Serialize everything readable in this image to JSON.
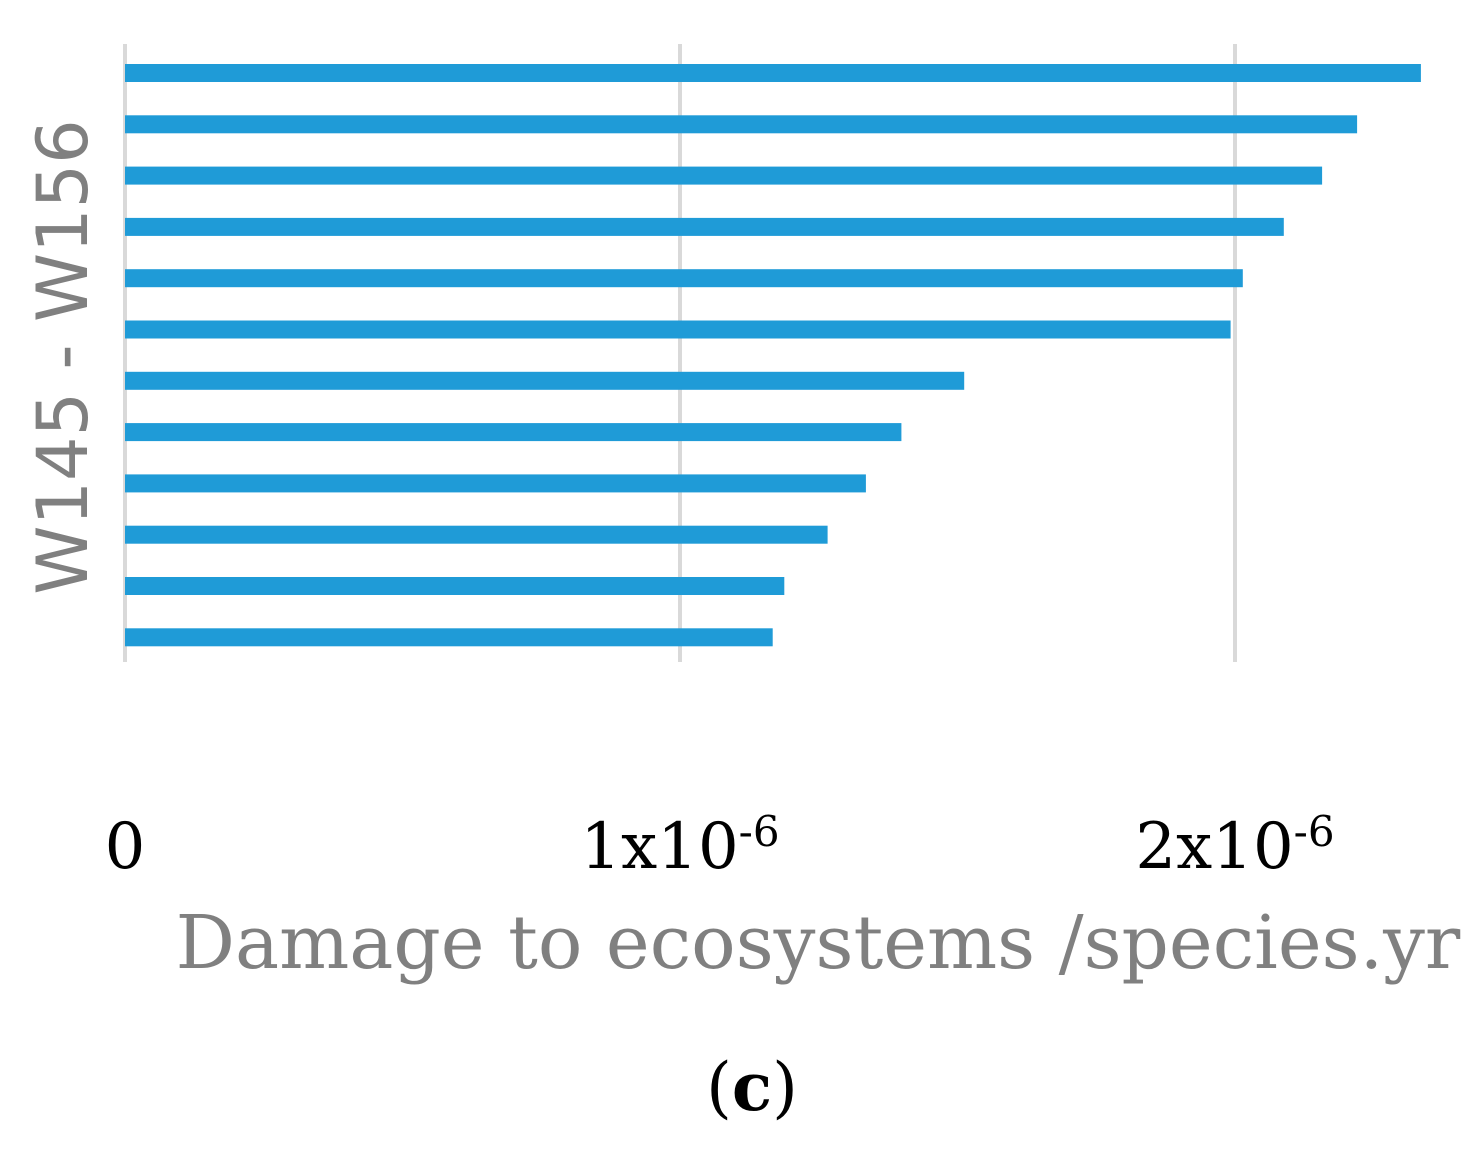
{
  "chart_data": {
    "type": "bar",
    "orientation": "horizontal",
    "title": "",
    "ylabel": "W145 - W156",
    "xlabel": "Damage to ecosystems /species.yr",
    "caption_open": "(",
    "caption_letter": "c",
    "caption_close": ")",
    "xlim": [
      0,
      2.35e-06
    ],
    "x_ticks": [
      {
        "value": 0,
        "base": "0",
        "exp": ""
      },
      {
        "value": 1e-06,
        "base": "1x10",
        "exp": "-6"
      },
      {
        "value": 2e-06,
        "base": "2x10",
        "exp": "-6"
      }
    ],
    "grid": true,
    "series": [
      {
        "name": "Damage to ecosystems",
        "values": [
          2.335e-06,
          2.22e-06,
          2.157e-06,
          2.088e-06,
          2.014e-06,
          1.992e-06,
          1.512e-06,
          1.399e-06,
          1.335e-06,
          1.266e-06,
          1.188e-06,
          1.167e-06
        ]
      }
    ],
    "colors": {
      "bar": "#1f9bd7",
      "grid": "#d9d9d9",
      "axis_title": "#808080",
      "tick_text": "#000000",
      "caption": "#000000"
    }
  }
}
